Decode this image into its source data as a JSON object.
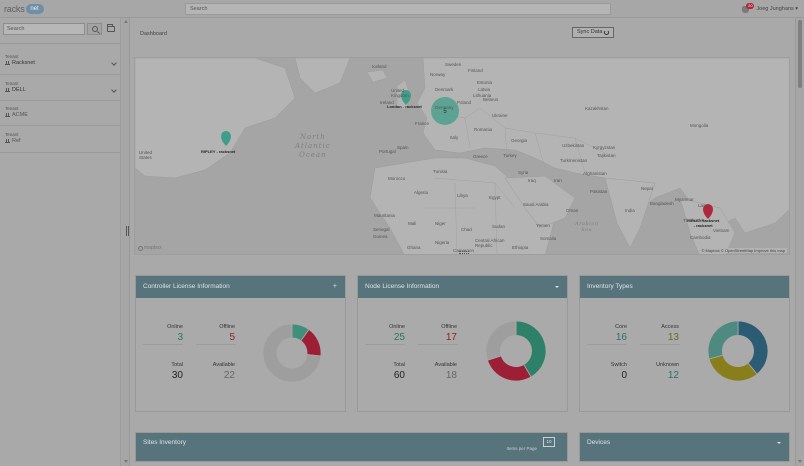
{
  "header": {
    "logo_text": "racks",
    "logo_cloud_text": "net",
    "search_placeholder": "Search",
    "notifications_count": "20",
    "user_name": "Joeg Junghans ▾"
  },
  "sidebar": {
    "search_placeholder": "Search",
    "tenants": [
      {
        "label": "Tenant",
        "value": "Racksnet",
        "collapsible": true
      },
      {
        "label": "Tenant",
        "value": "DELL",
        "collapsible": true
      },
      {
        "label": "Tenant",
        "value": "ACME",
        "collapsible": false
      },
      {
        "label": "Tenant",
        "value": "Ref",
        "collapsible": false
      }
    ]
  },
  "main": {
    "page_title": "Dashboard",
    "sync_button": "Sync Data"
  },
  "map": {
    "ocean_label": "North\nAtlantic\nOcean",
    "sea_label": "Arabian\nSea",
    "cluster_count": "5",
    "pins": [
      {
        "label": "RIPLEY - racksnet"
      },
      {
        "label": "London - racksnet"
      },
      {
        "label": "RIPLEYRacksnet\n- racksnet"
      }
    ],
    "place_labels": [
      "Iceland",
      "Sweden",
      "Finland",
      "Norway",
      "Estonia",
      "Latvia",
      "Denmark",
      "Lithuania",
      "United Kingdom",
      "Ireland",
      "Poland",
      "Belarus",
      "Germany",
      "France",
      "Ukraine",
      "Kazakhstan",
      "Italy",
      "Romania",
      "Spain",
      "Portugal",
      "Georgia",
      "Greece",
      "Turkey",
      "Uzbekistan",
      "Kyrgyzstan",
      "Tajikistan",
      "Turkmenistan",
      "Tunisia",
      "Syria",
      "Iraq",
      "Iran",
      "Afghanistan",
      "Morocco",
      "Algeria",
      "Libya",
      "Egypt",
      "Pakistan",
      "Nepal",
      "Mauritania",
      "Mali",
      "Niger",
      "Chad",
      "Sudan",
      "Saudi Arabia",
      "Yemen",
      "Oman",
      "India",
      "Bangladesh",
      "Myanmar",
      "Laos",
      "Thailand",
      "Cambodia",
      "Vietnam",
      "Senegal",
      "Guinea",
      "Nigeria",
      "Ethiopia",
      "Somalia",
      "Ghana",
      "Cameroon",
      "Central African Republic",
      "United States",
      "Mongolia"
    ],
    "attribution": "© Mapbox © OpenStreetMap Improve this map",
    "mapbox_logo": "mapbox"
  },
  "controller_license": {
    "title": "Controller License Information",
    "online_label": "Online",
    "online_value": "3",
    "offline_label": "Offline",
    "offline_value": "5",
    "total_label": "Total",
    "total_value": "30",
    "available_label": "Available",
    "available_value": "22"
  },
  "node_license": {
    "title": "Node License Information",
    "online_label": "Online",
    "online_value": "25",
    "offline_label": "Offline",
    "offline_value": "17",
    "total_label": "Total",
    "total_value": "60",
    "available_label": "Available",
    "available_value": "18"
  },
  "inventory_types": {
    "title": "Inventory Types",
    "core_label": "Core",
    "core_value": "16",
    "access_label": "Access",
    "access_value": "13",
    "switch_label": "Switch",
    "switch_value": "0",
    "unknown_label": "Unknown",
    "unknown_value": "12"
  },
  "chart_data": [
    {
      "type": "pie",
      "name": "controller",
      "labels": [
        "Online",
        "Offline",
        "Available"
      ],
      "values": [
        3,
        5,
        22
      ],
      "colors": [
        "#3f8f7a",
        "#9c1f35",
        "#9e9e9e"
      ]
    },
    {
      "type": "pie",
      "name": "node",
      "labels": [
        "Online",
        "Offline",
        "Available"
      ],
      "values": [
        25,
        17,
        18
      ],
      "colors": [
        "#2f8068",
        "#9c1f35",
        "#9e9e9e"
      ]
    },
    {
      "type": "pie",
      "name": "inventory",
      "labels": [
        "Core",
        "Access",
        "Switch",
        "Unknown"
      ],
      "values": [
        16,
        13,
        0,
        12
      ],
      "colors": [
        "#2c5b74",
        "#8a7d1c",
        "#c0c0c0",
        "#4f8a80"
      ]
    }
  ],
  "bottom": {
    "sites_title": "Sites Inventory",
    "items_per_page_label": "Items per Page",
    "items_per_page_value": "10",
    "devices_title": "Devices"
  }
}
